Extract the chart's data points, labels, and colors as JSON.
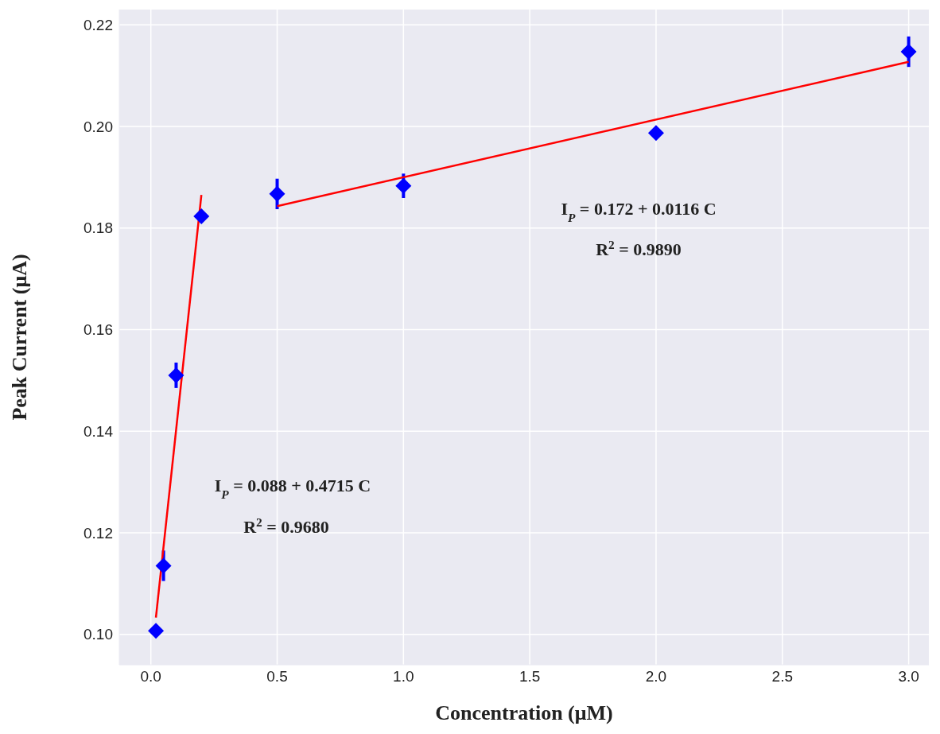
{
  "chart_data": {
    "type": "scatter",
    "xlabel": "Concentration (μM)",
    "ylabel": "Peak Current (μA)",
    "xlim": [
      -0.125,
      3.08
    ],
    "ylim": [
      0.094,
      0.223
    ],
    "xticks": [
      {
        "value": 0,
        "label": "0.0"
      },
      {
        "value": 0.5,
        "label": "0.5"
      },
      {
        "value": 1,
        "label": "1.0"
      },
      {
        "value": 1.5,
        "label": "1.5"
      },
      {
        "value": 2,
        "label": "2.0"
      },
      {
        "value": 2.5,
        "label": "2.5"
      },
      {
        "value": 3,
        "label": "3.0"
      }
    ],
    "yticks": [
      {
        "value": 0.1,
        "label": "0.10"
      },
      {
        "value": 0.12,
        "label": "0.12"
      },
      {
        "value": 0.14,
        "label": "0.14"
      },
      {
        "value": 0.16,
        "label": "0.16"
      },
      {
        "value": 0.18,
        "label": "0.18"
      },
      {
        "value": 0.2,
        "label": "0.20"
      },
      {
        "value": 0.22,
        "label": "0.22"
      }
    ],
    "grid": true,
    "series": [
      {
        "marker": "diamond",
        "color": "#0000ff",
        "x": [
          0.02,
          0.05,
          0.1,
          0.2,
          0.5,
          1,
          2,
          3
        ],
        "values": [
          0.1007,
          0.1135,
          0.151,
          0.1823,
          0.1867,
          0.1883,
          0.1987,
          0.2147
        ],
        "errors": [
          null,
          0.003,
          0.0025,
          null,
          0.003,
          0.0024,
          null,
          0.003
        ]
      },
      {
        "type": "line",
        "color": "#ff0000",
        "x": [
          0.02,
          0.2
        ],
        "values": [
          0.1033,
          0.1865
        ]
      },
      {
        "type": "line",
        "color": "#ff0000",
        "x": [
          0.5,
          3
        ],
        "values": [
          0.1843,
          0.2127
        ]
      }
    ],
    "annotations": [
      "I$_{P}$ = 0.088 + 0.4715 C",
      "R$^{2}$ = 0.9680",
      "I$_{P}$ = 0.172 + 0.0116 C",
      "R$^{2}$ = 0.9890"
    ]
  }
}
